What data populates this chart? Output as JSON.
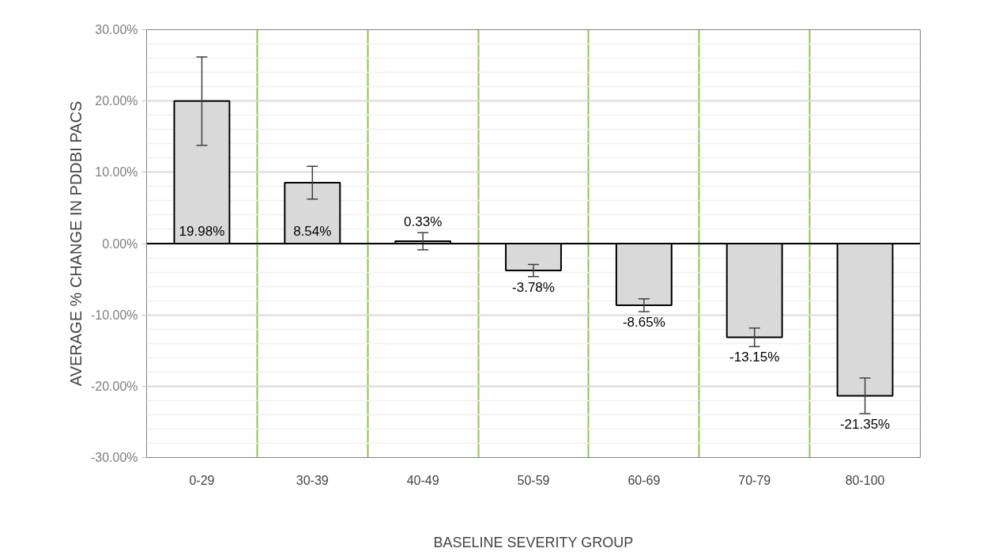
{
  "chart_data": {
    "type": "bar",
    "xlabel": "BASELINE SEVERITY GROUP",
    "ylabel": "AVERAGE % CHANGE IN PDDBI PACS",
    "categories": [
      "0-29",
      "30-39",
      "40-49",
      "50-59",
      "60-69",
      "70-79",
      "80-100"
    ],
    "series": [
      {
        "color": "#d9d9d9",
        "values": [
          19.98,
          8.54,
          0.33,
          -3.78,
          -8.65,
          -13.15,
          -21.35
        ],
        "errors": [
          6.2,
          2.3,
          1.2,
          0.85,
          0.9,
          1.3,
          2.5
        ],
        "value_labels": [
          "19.98%",
          "8.54%",
          "0.33%",
          "-3.78%",
          "-8.65%",
          "-13.15%",
          "-21.35%"
        ]
      }
    ],
    "ylim": [
      -30,
      30
    ],
    "yticks": [
      {
        "value": -30,
        "label": "-30.00%"
      },
      {
        "value": -28,
        "label": null
      },
      {
        "value": -26,
        "label": null
      },
      {
        "value": -24,
        "label": null
      },
      {
        "value": -22,
        "label": null
      },
      {
        "value": -20,
        "label": "-20.00%"
      },
      {
        "value": -18,
        "label": null
      },
      {
        "value": -16,
        "label": null
      },
      {
        "value": -14,
        "label": null
      },
      {
        "value": -12,
        "label": null
      },
      {
        "value": -10,
        "label": "-10.00%"
      },
      {
        "value": -8,
        "label": null
      },
      {
        "value": -6,
        "label": null
      },
      {
        "value": -4,
        "label": null
      },
      {
        "value": -2,
        "label": null
      },
      {
        "value": 0,
        "label": "0.00%"
      },
      {
        "value": 2,
        "label": null
      },
      {
        "value": 4,
        "label": null
      },
      {
        "value": 6,
        "label": null
      },
      {
        "value": 8,
        "label": null
      },
      {
        "value": 10,
        "label": "10.00%"
      },
      {
        "value": 12,
        "label": null
      },
      {
        "value": 14,
        "label": null
      },
      {
        "value": 16,
        "label": null
      },
      {
        "value": 18,
        "label": null
      },
      {
        "value": 20,
        "label": "20.00%"
      },
      {
        "value": 22,
        "label": null
      },
      {
        "value": 24,
        "label": null
      },
      {
        "value": 26,
        "label": null
      },
      {
        "value": 28,
        "label": null
      },
      {
        "value": 30,
        "label": "30.00%"
      }
    ],
    "ref_lines": [
      {
        "axis": "y",
        "value": 0,
        "color": "#000000"
      }
    ],
    "grid": true
  }
}
